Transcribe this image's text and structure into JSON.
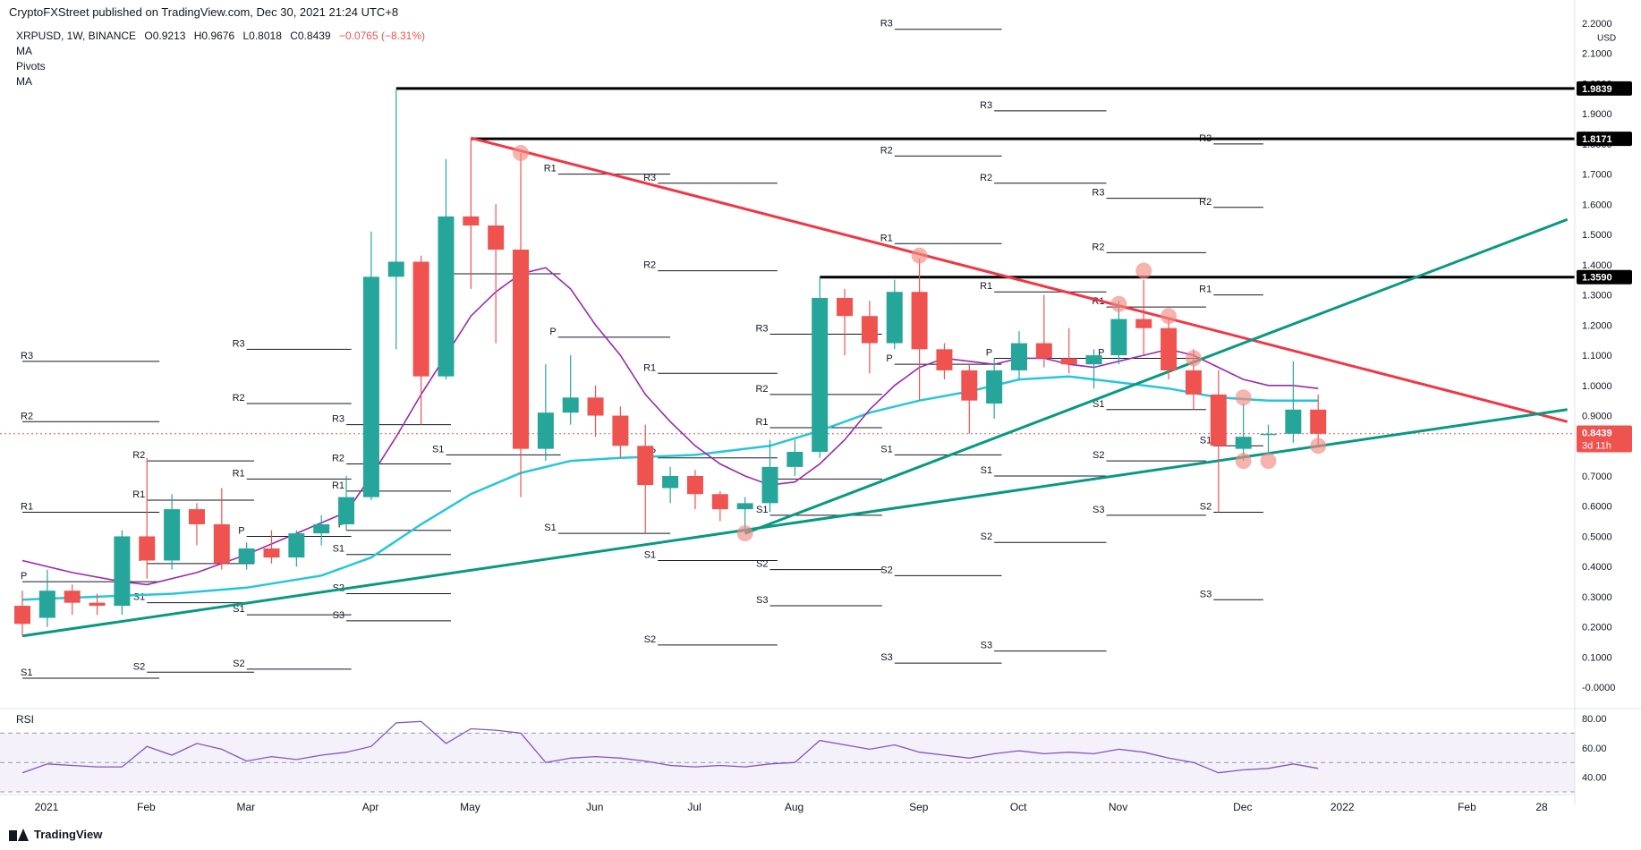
{
  "header": {
    "publisher": "CryptoFXStreet published on TradingView.com, Dec 30, 2021 21:24 UTC+8"
  },
  "legend": {
    "symbol": "XRPUSD, 1W, BINANCE",
    "open": "O0.9213",
    "high": "H0.9676",
    "low": "L0.8018",
    "close": "C0.8439",
    "change": "−0.0765 (−8.31%)",
    "ind1": "MA",
    "ind2": "Pivots",
    "ind3": "MA"
  },
  "footer": {
    "brand": "TradingView"
  },
  "colors": {
    "up": "#26a69a",
    "down": "#ef5350",
    "ma_fast": "#9c27b0",
    "ma_slow": "#26c6da",
    "trend_red": "#f23645",
    "trend_green": "#089981",
    "rsi": "#7e57c2"
  },
  "chart_data": {
    "type": "candlestick",
    "symbol": "XRPUSD",
    "timeframe": "1W",
    "y_axis": {
      "currency": "USD",
      "range": [
        -0.05,
        2.2
      ],
      "ticks": [
        "2.2000",
        "2.1000",
        "2.0000",
        "1.9000",
        "1.8000",
        "1.7000",
        "1.6000",
        "1.5000",
        "1.4000",
        "1.3000",
        "1.2000",
        "1.1000",
        "1.0000",
        "0.9000",
        "0.8000",
        "0.7000",
        "0.6000",
        "0.5000",
        "0.4000",
        "0.3000",
        "0.2000",
        "0.1000",
        "-0.0000"
      ]
    },
    "x_axis": {
      "labels": [
        {
          "label": "2021",
          "w": 0
        },
        {
          "label": "Feb",
          "w": 4
        },
        {
          "label": "Mar",
          "w": 8
        },
        {
          "label": "Apr",
          "w": 13
        },
        {
          "label": "May",
          "w": 17
        },
        {
          "label": "Jun",
          "w": 22
        },
        {
          "label": "Jul",
          "w": 26
        },
        {
          "label": "Aug",
          "w": 30
        },
        {
          "label": "Sep",
          "w": 35
        },
        {
          "label": "Oct",
          "w": 39
        },
        {
          "label": "Nov",
          "w": 43
        },
        {
          "label": "Dec",
          "w": 48
        },
        {
          "label": "2022",
          "w": 52
        },
        {
          "label": "Feb",
          "w": 57
        },
        {
          "label": "28",
          "w": 60
        }
      ]
    },
    "candles": [
      {
        "o": 0.27,
        "h": 0.32,
        "l": 0.17,
        "c": 0.21
      },
      {
        "o": 0.23,
        "h": 0.39,
        "l": 0.2,
        "c": 0.32
      },
      {
        "o": 0.32,
        "h": 0.34,
        "l": 0.24,
        "c": 0.28
      },
      {
        "o": 0.28,
        "h": 0.31,
        "l": 0.24,
        "c": 0.27
      },
      {
        "o": 0.27,
        "h": 0.52,
        "l": 0.24,
        "c": 0.5
      },
      {
        "o": 0.5,
        "h": 0.76,
        "l": 0.36,
        "c": 0.42
      },
      {
        "o": 0.42,
        "h": 0.64,
        "l": 0.39,
        "c": 0.59
      },
      {
        "o": 0.59,
        "h": 0.61,
        "l": 0.47,
        "c": 0.54
      },
      {
        "o": 0.54,
        "h": 0.66,
        "l": 0.39,
        "c": 0.41
      },
      {
        "o": 0.41,
        "h": 0.48,
        "l": 0.39,
        "c": 0.46
      },
      {
        "o": 0.46,
        "h": 0.52,
        "l": 0.41,
        "c": 0.43
      },
      {
        "o": 0.43,
        "h": 0.52,
        "l": 0.4,
        "c": 0.51
      },
      {
        "o": 0.51,
        "h": 0.57,
        "l": 0.47,
        "c": 0.54
      },
      {
        "o": 0.54,
        "h": 0.7,
        "l": 0.52,
        "c": 0.63
      },
      {
        "o": 0.63,
        "h": 1.51,
        "l": 0.62,
        "c": 1.36
      },
      {
        "o": 1.36,
        "h": 1.98,
        "l": 1.12,
        "c": 1.41
      },
      {
        "o": 1.41,
        "h": 1.43,
        "l": 0.87,
        "c": 1.03
      },
      {
        "o": 1.03,
        "h": 1.75,
        "l": 1.02,
        "c": 1.56
      },
      {
        "o": 1.56,
        "h": 1.82,
        "l": 1.32,
        "c": 1.53
      },
      {
        "o": 1.53,
        "h": 1.6,
        "l": 1.14,
        "c": 1.45
      },
      {
        "o": 1.45,
        "h": 1.77,
        "l": 0.63,
        "c": 0.79
      },
      {
        "o": 0.79,
        "h": 1.07,
        "l": 0.75,
        "c": 0.91
      },
      {
        "o": 0.91,
        "h": 1.1,
        "l": 0.87,
        "c": 0.96
      },
      {
        "o": 0.96,
        "h": 1.0,
        "l": 0.83,
        "c": 0.9
      },
      {
        "o": 0.9,
        "h": 0.93,
        "l": 0.76,
        "c": 0.8
      },
      {
        "o": 0.8,
        "h": 0.87,
        "l": 0.51,
        "c": 0.67
      },
      {
        "o": 0.66,
        "h": 0.73,
        "l": 0.61,
        "c": 0.7
      },
      {
        "o": 0.7,
        "h": 0.72,
        "l": 0.59,
        "c": 0.64
      },
      {
        "o": 0.64,
        "h": 0.65,
        "l": 0.55,
        "c": 0.59
      },
      {
        "o": 0.59,
        "h": 0.63,
        "l": 0.51,
        "c": 0.61
      },
      {
        "o": 0.61,
        "h": 0.82,
        "l": 0.58,
        "c": 0.73
      },
      {
        "o": 0.73,
        "h": 0.82,
        "l": 0.7,
        "c": 0.78
      },
      {
        "o": 0.78,
        "h": 1.36,
        "l": 0.76,
        "c": 1.29
      },
      {
        "o": 1.29,
        "h": 1.32,
        "l": 1.1,
        "c": 1.23
      },
      {
        "o": 1.23,
        "h": 1.28,
        "l": 1.04,
        "c": 1.14
      },
      {
        "o": 1.14,
        "h": 1.35,
        "l": 1.12,
        "c": 1.31
      },
      {
        "o": 1.31,
        "h": 1.42,
        "l": 0.95,
        "c": 1.12
      },
      {
        "o": 1.12,
        "h": 1.14,
        "l": 1.02,
        "c": 1.05
      },
      {
        "o": 1.05,
        "h": 1.07,
        "l": 0.84,
        "c": 0.95
      },
      {
        "o": 0.94,
        "h": 1.09,
        "l": 0.89,
        "c": 1.05
      },
      {
        "o": 1.05,
        "h": 1.18,
        "l": 1.02,
        "c": 1.14
      },
      {
        "o": 1.14,
        "h": 1.3,
        "l": 1.06,
        "c": 1.09
      },
      {
        "o": 1.09,
        "h": 1.19,
        "l": 1.04,
        "c": 1.07
      },
      {
        "o": 1.07,
        "h": 1.12,
        "l": 0.99,
        "c": 1.1
      },
      {
        "o": 1.1,
        "h": 1.28,
        "l": 1.07,
        "c": 1.22
      },
      {
        "o": 1.22,
        "h": 1.35,
        "l": 1.1,
        "c": 1.19
      },
      {
        "o": 1.19,
        "h": 1.22,
        "l": 1.02,
        "c": 1.05
      },
      {
        "o": 1.05,
        "h": 1.12,
        "l": 0.92,
        "c": 0.97
      },
      {
        "o": 0.97,
        "h": 1.05,
        "l": 0.58,
        "c": 0.8
      },
      {
        "o": 0.79,
        "h": 0.94,
        "l": 0.75,
        "c": 0.83
      },
      {
        "o": 0.84,
        "h": 0.87,
        "l": 0.78,
        "c": 0.84
      },
      {
        "o": 0.84,
        "h": 1.08,
        "l": 0.81,
        "c": 0.92
      },
      {
        "o": 0.92,
        "h": 0.97,
        "l": 0.8,
        "c": 0.84
      }
    ],
    "ma_fast": [
      [
        0,
        0.42
      ],
      [
        2,
        0.38
      ],
      [
        4,
        0.35
      ],
      [
        5,
        0.34
      ],
      [
        7,
        0.38
      ],
      [
        9,
        0.44
      ],
      [
        11,
        0.51
      ],
      [
        13,
        0.58
      ],
      [
        14,
        0.7
      ],
      [
        15,
        0.83
      ],
      [
        16,
        0.97
      ],
      [
        17,
        1.1
      ],
      [
        18,
        1.23
      ],
      [
        19,
        1.31
      ],
      [
        20,
        1.37
      ],
      [
        21,
        1.39
      ],
      [
        22,
        1.32
      ],
      [
        23,
        1.2
      ],
      [
        24,
        1.1
      ],
      [
        25,
        0.97
      ],
      [
        26,
        0.88
      ],
      [
        27,
        0.8
      ],
      [
        28,
        0.74
      ],
      [
        29,
        0.7
      ],
      [
        30,
        0.67
      ],
      [
        31,
        0.68
      ],
      [
        32,
        0.74
      ],
      [
        33,
        0.82
      ],
      [
        34,
        0.92
      ],
      [
        35,
        1.0
      ],
      [
        36,
        1.06
      ],
      [
        37,
        1.09
      ],
      [
        38,
        1.08
      ],
      [
        39,
        1.07
      ],
      [
        40,
        1.09
      ],
      [
        41,
        1.09
      ],
      [
        42,
        1.07
      ],
      [
        43,
        1.06
      ],
      [
        44,
        1.08
      ],
      [
        45,
        1.1
      ],
      [
        46,
        1.12
      ],
      [
        47,
        1.1
      ],
      [
        48,
        1.06
      ],
      [
        49,
        1.02
      ],
      [
        50,
        1.0
      ],
      [
        51,
        1.0
      ],
      [
        52,
        0.99
      ]
    ],
    "ma_slow": [
      [
        0,
        0.29
      ],
      [
        3,
        0.3
      ],
      [
        6,
        0.31
      ],
      [
        9,
        0.33
      ],
      [
        12,
        0.37
      ],
      [
        14,
        0.43
      ],
      [
        16,
        0.54
      ],
      [
        18,
        0.64
      ],
      [
        20,
        0.71
      ],
      [
        22,
        0.75
      ],
      [
        24,
        0.76
      ],
      [
        27,
        0.77
      ],
      [
        30,
        0.8
      ],
      [
        32,
        0.85
      ],
      [
        34,
        0.91
      ],
      [
        36,
        0.95
      ],
      [
        38,
        0.98
      ],
      [
        40,
        1.02
      ],
      [
        42,
        1.03
      ],
      [
        44,
        1.01
      ],
      [
        46,
        0.99
      ],
      [
        48,
        0.96
      ],
      [
        50,
        0.95
      ],
      [
        52,
        0.95
      ]
    ],
    "trendlines": [
      {
        "name": "resistance",
        "from": [
          18,
          1.82
        ],
        "to": [
          62,
          0.88
        ],
        "color": "red"
      },
      {
        "name": "support-long",
        "from": [
          0,
          0.17
        ],
        "to": [
          62,
          0.92
        ],
        "color": "green"
      },
      {
        "name": "support-steep",
        "from": [
          29,
          0.51
        ],
        "to": [
          62,
          1.55
        ],
        "color": "green"
      }
    ],
    "horizontal_levels": [
      {
        "value": 1.9839,
        "label": "1.9839",
        "from_w": 15
      },
      {
        "value": 1.8171,
        "label": "1.8171",
        "from_w": 18
      },
      {
        "value": 1.359,
        "label": "1.3590",
        "from_w": 32
      }
    ],
    "touch_markers": [
      [
        20,
        1.77
      ],
      [
        29,
        0.51
      ],
      [
        36,
        1.43
      ],
      [
        44,
        1.27
      ],
      [
        45,
        1.38
      ],
      [
        46,
        1.23
      ],
      [
        47,
        1.09
      ],
      [
        49,
        0.96
      ],
      [
        49,
        0.75
      ],
      [
        50,
        0.75
      ],
      [
        52,
        0.8
      ]
    ],
    "pivots": [
      {
        "label": "R3",
        "w0": 0,
        "w1": 5.5,
        "v": 1.08
      },
      {
        "label": "R2",
        "w0": 0,
        "w1": 5.5,
        "v": 0.88
      },
      {
        "label": "R1",
        "w0": 0,
        "w1": 5.5,
        "v": 0.58
      },
      {
        "label": "P",
        "w0": 0,
        "w1": 5.5,
        "v": 0.35
      },
      {
        "label": "S1",
        "w0": 0,
        "w1": 5.5,
        "v": 0.03
      },
      {
        "label": "R2",
        "w0": 5,
        "w1": 9.3,
        "v": 0.75
      },
      {
        "label": "R1",
        "w0": 5,
        "w1": 9.3,
        "v": 0.62
      },
      {
        "label": "P",
        "w0": 5,
        "w1": 9.3,
        "v": 0.41
      },
      {
        "label": "S1",
        "w0": 5,
        "w1": 9.3,
        "v": 0.28
      },
      {
        "label": "S2",
        "w0": 5,
        "w1": 9.3,
        "v": 0.05
      },
      {
        "label": "R3",
        "w0": 9,
        "w1": 13.2,
        "v": 1.12
      },
      {
        "label": "R2",
        "w0": 9,
        "w1": 13.2,
        "v": 0.94
      },
      {
        "label": "R1",
        "w0": 9,
        "w1": 13.2,
        "v": 0.69
      },
      {
        "label": "P",
        "w0": 9,
        "w1": 13.2,
        "v": 0.5
      },
      {
        "label": "S1",
        "w0": 9,
        "w1": 13.2,
        "v": 0.24
      },
      {
        "label": "S2",
        "w0": 9,
        "w1": 13.2,
        "v": 0.06
      },
      {
        "label": "R3",
        "w0": 13,
        "w1": 17.2,
        "v": 0.87
      },
      {
        "label": "R2",
        "w0": 13,
        "w1": 17.2,
        "v": 0.74
      },
      {
        "label": "R1",
        "w0": 13,
        "w1": 17.2,
        "v": 0.65
      },
      {
        "label": "P",
        "w0": 13,
        "w1": 17.2,
        "v": 0.52
      },
      {
        "label": "S1",
        "w0": 13,
        "w1": 17.2,
        "v": 0.44
      },
      {
        "label": "S2",
        "w0": 13,
        "w1": 17.2,
        "v": 0.31
      },
      {
        "label": "S3",
        "w0": 13,
        "w1": 17.2,
        "v": 0.22
      },
      {
        "label": "P",
        "w0": 17,
        "w1": 21.6,
        "v": 1.37
      },
      {
        "label": "S1",
        "w0": 17,
        "w1": 21.6,
        "v": 0.77
      },
      {
        "label": "R1",
        "w0": 21.5,
        "w1": 26,
        "v": 1.7
      },
      {
        "label": "P",
        "w0": 21.5,
        "w1": 26,
        "v": 1.16
      },
      {
        "label": "S1",
        "w0": 21.5,
        "w1": 26,
        "v": 0.51
      },
      {
        "label": "R3",
        "w0": 25.5,
        "w1": 30.3,
        "v": 1.67
      },
      {
        "label": "R2",
        "w0": 25.5,
        "w1": 30.3,
        "v": 1.38
      },
      {
        "label": "R1",
        "w0": 25.5,
        "w1": 30.3,
        "v": 1.04
      },
      {
        "label": "P",
        "w0": 25.5,
        "w1": 30.3,
        "v": 0.76
      },
      {
        "label": "S1",
        "w0": 25.5,
        "w1": 30.3,
        "v": 0.42
      },
      {
        "label": "S2",
        "w0": 25.5,
        "w1": 30.3,
        "v": 0.14
      },
      {
        "label": "R3",
        "w0": 30,
        "w1": 34.5,
        "v": 1.17
      },
      {
        "label": "R2",
        "w0": 30,
        "w1": 34.5,
        "v": 0.97
      },
      {
        "label": "R1",
        "w0": 30,
        "w1": 34.5,
        "v": 0.86
      },
      {
        "label": "P",
        "w0": 30,
        "w1": 34.5,
        "v": 0.69
      },
      {
        "label": "S1",
        "w0": 30,
        "w1": 34.5,
        "v": 0.57
      },
      {
        "label": "S2",
        "w0": 30,
        "w1": 34.5,
        "v": 0.39
      },
      {
        "label": "S3",
        "w0": 30,
        "w1": 34.5,
        "v": 0.27
      },
      {
        "label": "R3",
        "w0": 35,
        "w1": 39.3,
        "v": 2.18
      },
      {
        "label": "R2",
        "w0": 35,
        "w1": 39.3,
        "v": 1.76
      },
      {
        "label": "R1",
        "w0": 35,
        "w1": 39.3,
        "v": 1.47
      },
      {
        "label": "P",
        "w0": 35,
        "w1": 39.3,
        "v": 1.07
      },
      {
        "label": "S1",
        "w0": 35,
        "w1": 39.3,
        "v": 0.77
      },
      {
        "label": "S2",
        "w0": 35,
        "w1": 39.3,
        "v": 0.37
      },
      {
        "label": "S3",
        "w0": 35,
        "w1": 39.3,
        "v": 0.08
      },
      {
        "label": "R3",
        "w0": 39,
        "w1": 43.5,
        "v": 1.91
      },
      {
        "label": "R2",
        "w0": 39,
        "w1": 43.5,
        "v": 1.67
      },
      {
        "label": "R1",
        "w0": 39,
        "w1": 43.5,
        "v": 1.31
      },
      {
        "label": "P",
        "w0": 39,
        "w1": 43.5,
        "v": 1.09
      },
      {
        "label": "S1",
        "w0": 39,
        "w1": 43.5,
        "v": 0.7
      },
      {
        "label": "S2",
        "w0": 39,
        "w1": 43.5,
        "v": 0.48
      },
      {
        "label": "S3",
        "w0": 39,
        "w1": 43.5,
        "v": 0.12
      },
      {
        "label": "R3",
        "w0": 43.5,
        "w1": 47.5,
        "v": 1.62
      },
      {
        "label": "R2",
        "w0": 43.5,
        "w1": 47.5,
        "v": 1.44
      },
      {
        "label": "R1",
        "w0": 43.5,
        "w1": 47.5,
        "v": 1.26
      },
      {
        "label": "P",
        "w0": 43.5,
        "w1": 47.5,
        "v": 1.09
      },
      {
        "label": "S1",
        "w0": 43.5,
        "w1": 47.5,
        "v": 0.92
      },
      {
        "label": "S2",
        "w0": 43.5,
        "w1": 47.5,
        "v": 0.75
      },
      {
        "label": "S3",
        "w0": 43.5,
        "w1": 47.5,
        "v": 0.57
      },
      {
        "label": "R3",
        "w0": 47.8,
        "w1": 49.8,
        "v": 1.8
      },
      {
        "label": "R2",
        "w0": 47.8,
        "w1": 49.8,
        "v": 1.59
      },
      {
        "label": "R1",
        "w0": 47.8,
        "w1": 49.8,
        "v": 1.3
      },
      {
        "label": "S1",
        "w0": 47.8,
        "w1": 49.8,
        "v": 0.8
      },
      {
        "label": "S2",
        "w0": 47.8,
        "w1": 49.8,
        "v": 0.58
      },
      {
        "label": "S3",
        "w0": 47.8,
        "w1": 49.8,
        "v": 0.29
      }
    ],
    "price_labels": [
      {
        "value": 1.9839,
        "text": "1.9839",
        "style": "black"
      },
      {
        "value": 1.8171,
        "text": "1.8171",
        "style": "black"
      },
      {
        "value": 1.359,
        "text": "1.3590",
        "style": "black"
      },
      {
        "value": 0.8439,
        "text": "0.8439",
        "style": "red",
        "sub": "3d 11h"
      }
    ],
    "rsi": {
      "label": "RSI",
      "range": [
        30,
        80
      ],
      "ticks": [
        "80.00",
        "60.00",
        "40.00"
      ],
      "upper": 70,
      "lower": 30,
      "mid": 50,
      "values": [
        43,
        49,
        48,
        47,
        47,
        61,
        55,
        63,
        59,
        51,
        54,
        52,
        55,
        57,
        61,
        77,
        78,
        63,
        73,
        72,
        70,
        50,
        53,
        54,
        53,
        51,
        48,
        47,
        48,
        47,
        49,
        50,
        65,
        62,
        59,
        62,
        57,
        55,
        53,
        56,
        58,
        56,
        57,
        56,
        59,
        57,
        53,
        50,
        43,
        45,
        46,
        49,
        46
      ]
    }
  }
}
